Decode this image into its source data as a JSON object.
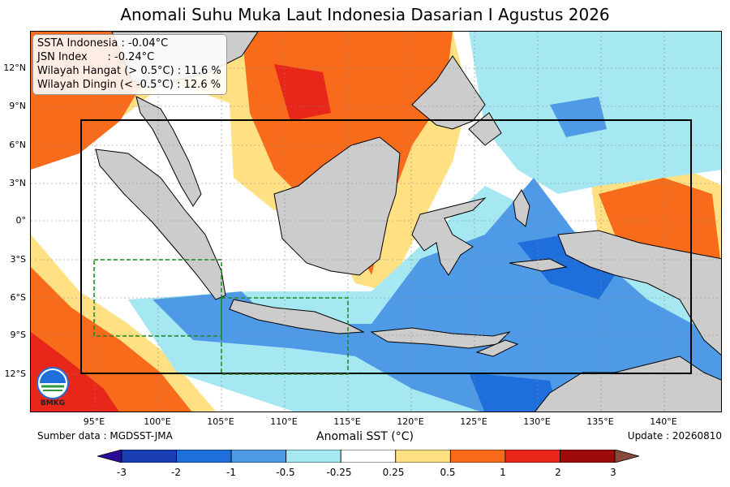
{
  "title": "Anomali Suhu Muka Laut Indonesia Dasarian I Agustus 2026",
  "info": {
    "line1": "SSTA Indonesia : -0.04°C",
    "line2": "JSN Index      : -0.24°C",
    "line3": "Wilayah Hangat (> 0.5°C) : 11.6 %",
    "line4": "Wilayah Dingin (< -0.5°C) : 12.6 %"
  },
  "axes": {
    "lat_ticks": [
      "12°N",
      "9°N",
      "6°N",
      "3°N",
      "0°",
      "3°S",
      "6°S",
      "9°S",
      "12°S"
    ],
    "lon_ticks": [
      "95°E",
      "100°E",
      "105°E",
      "110°E",
      "115°E",
      "120°E",
      "125°E",
      "130°E",
      "135°E",
      "140°E"
    ]
  },
  "source": "Sumber data : MGDSST-JMA",
  "update": "Update : 20260810",
  "colorbar": {
    "label": "Anomali SST (°C)",
    "ticks": [
      "-3",
      "-2",
      "-1",
      "-0.5",
      "-0.25",
      "0.25",
      "0.5",
      "1",
      "2",
      "3"
    ],
    "colors": [
      "#1a3fb4",
      "#1e6fdc",
      "#4f9ae6",
      "#a6e8f2",
      "#ffffff",
      "#ffe082",
      "#f86b1a",
      "#e8261a",
      "#9c0a0a"
    ],
    "under_color": "#2a0c98",
    "over_color": "#8a4a3a"
  },
  "colors": {
    "land": "#cccccc",
    "warm_strong": "#f86b1a",
    "warm": "#ffe082",
    "cool": "#a6e8f2",
    "cold": "#4f9ae6",
    "colder": "#1e6fdc"
  },
  "logo": {
    "text": "BMKG"
  }
}
